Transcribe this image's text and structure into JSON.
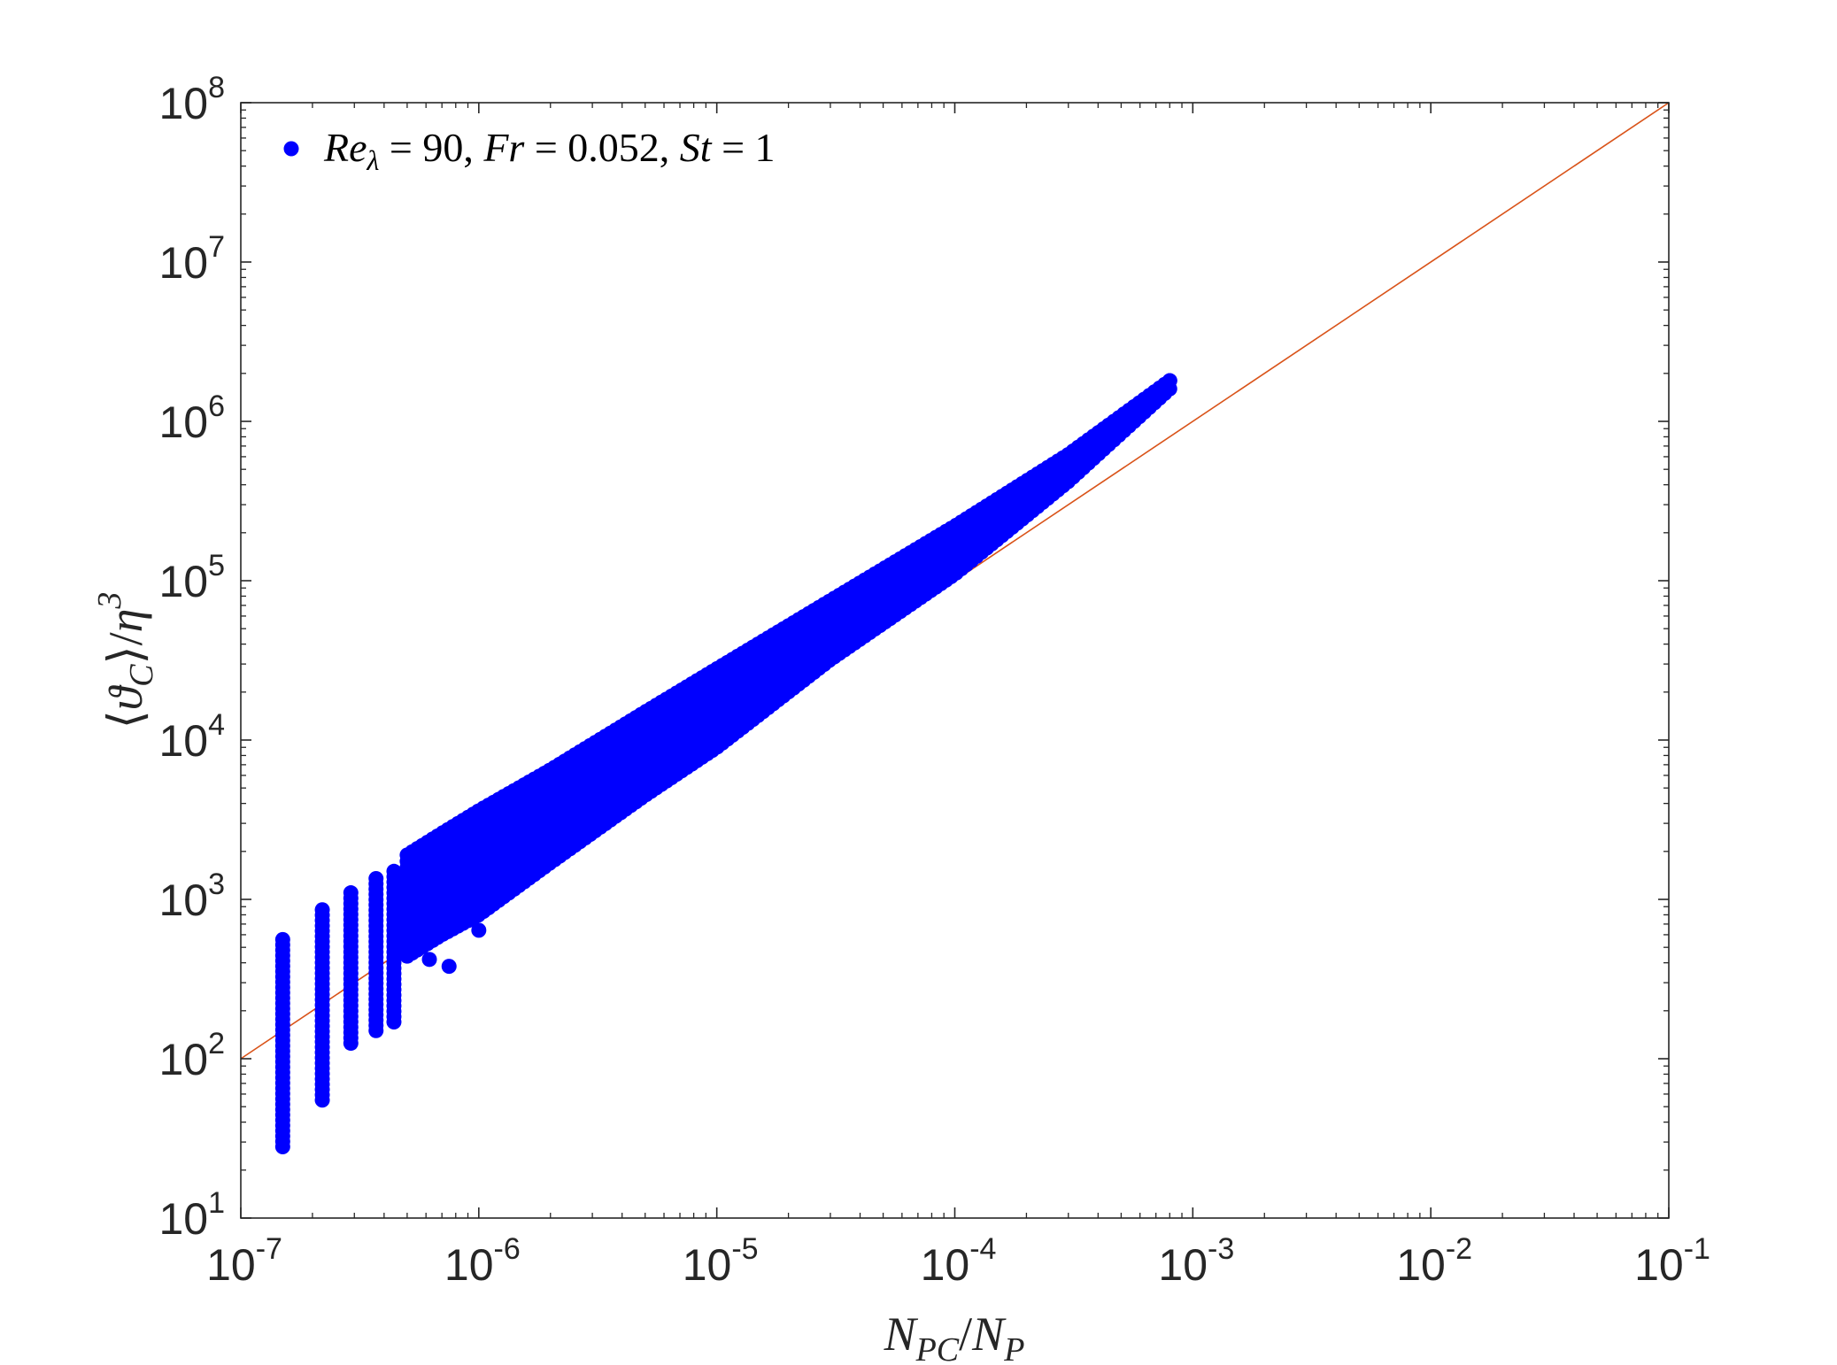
{
  "chart_data": {
    "type": "scatter",
    "xscale": "log",
    "yscale": "log",
    "xlim": [
      1e-07,
      0.1
    ],
    "ylim": [
      10,
      100000000
    ],
    "xticks": [
      {
        "value": 1e-07,
        "base": "10",
        "exp": "-7"
      },
      {
        "value": 1e-06,
        "base": "10",
        "exp": "-6"
      },
      {
        "value": 1e-05,
        "base": "10",
        "exp": "-5"
      },
      {
        "value": 0.0001,
        "base": "10",
        "exp": "-4"
      },
      {
        "value": 0.001,
        "base": "10",
        "exp": "-3"
      },
      {
        "value": 0.01,
        "base": "10",
        "exp": "-2"
      },
      {
        "value": 0.1,
        "base": "10",
        "exp": "-1"
      }
    ],
    "yticks": [
      {
        "value": 10,
        "base": "10",
        "exp": "1"
      },
      {
        "value": 100,
        "base": "10",
        "exp": "2"
      },
      {
        "value": 1000,
        "base": "10",
        "exp": "3"
      },
      {
        "value": 10000,
        "base": "10",
        "exp": "4"
      },
      {
        "value": 100000,
        "base": "10",
        "exp": "5"
      },
      {
        "value": 1000000,
        "base": "10",
        "exp": "6"
      },
      {
        "value": 10000000,
        "base": "10",
        "exp": "7"
      },
      {
        "value": 100000000,
        "base": "10",
        "exp": "8"
      }
    ],
    "xlabel": {
      "n1": "N",
      "s1": "PC",
      "slash": "/",
      "n2": "N",
      "s2": "P"
    },
    "ylabel": {
      "lang": "⟨",
      "theta": "ϑ",
      "sub": "C",
      "rang": "⟩",
      "slash": "/",
      "eta": "η",
      "exp": "3"
    },
    "grid": false,
    "legend_position": "top-left",
    "series": [
      {
        "name": "Re_λ = 90, Fr = 0.052, St = 1",
        "name_parts": {
          "re": "Re",
          "lam": "λ",
          "rest": " = 90, ",
          "fr": "Fr",
          "rest2": " = 0.052, ",
          "st": "St",
          "rest3": " = 1"
        },
        "color": "#0000ff",
        "marker": "circle",
        "columns": [
          {
            "x": 1.5e-07,
            "ymin": 28,
            "ymax": 560
          },
          {
            "x": 2.2e-07,
            "ymin": 55,
            "ymax": 860
          },
          {
            "x": 2.9e-07,
            "ymin": 125,
            "ymax": 1100
          },
          {
            "x": 3.7e-07,
            "ymin": 150,
            "ymax": 1350
          },
          {
            "x": 4.4e-07,
            "ymin": 170,
            "ymax": 1500
          }
        ],
        "band": [
          {
            "x": 5e-07,
            "ylow": 440,
            "yhigh": 1900
          },
          {
            "x": 7e-07,
            "ylow": 600,
            "yhigh": 2600
          },
          {
            "x": 1e-06,
            "ylow": 800,
            "yhigh": 3600
          },
          {
            "x": 2e-06,
            "ylow": 1700,
            "yhigh": 6500
          },
          {
            "x": 5e-06,
            "ylow": 4500,
            "yhigh": 15000
          },
          {
            "x": 1e-05,
            "ylow": 9000,
            "yhigh": 28000
          },
          {
            "x": 3e-05,
            "ylow": 32000,
            "yhigh": 75000
          },
          {
            "x": 0.0001,
            "ylow": 110000,
            "yhigh": 220000
          },
          {
            "x": 0.0003,
            "ylow": 420000,
            "yhigh": 620000
          },
          {
            "x": 0.0008,
            "ylow": 1600000,
            "yhigh": 1800000
          }
        ],
        "outliers": [
          {
            "x": 1.3e-05,
            "y": 16000
          },
          {
            "x": 1.1e-06,
            "y": 890
          },
          {
            "x": 1e-06,
            "y": 640
          },
          {
            "x": 7.5e-07,
            "y": 380
          },
          {
            "x": 6.2e-07,
            "y": 420
          }
        ],
        "endpoint": {
          "x": 0.0008,
          "y": 1800000
        }
      },
      {
        "name": "",
        "type": "line",
        "color": "#d95319",
        "x": [
          1e-07,
          0.1
        ],
        "y": [
          100,
          100000000
        ]
      }
    ]
  }
}
